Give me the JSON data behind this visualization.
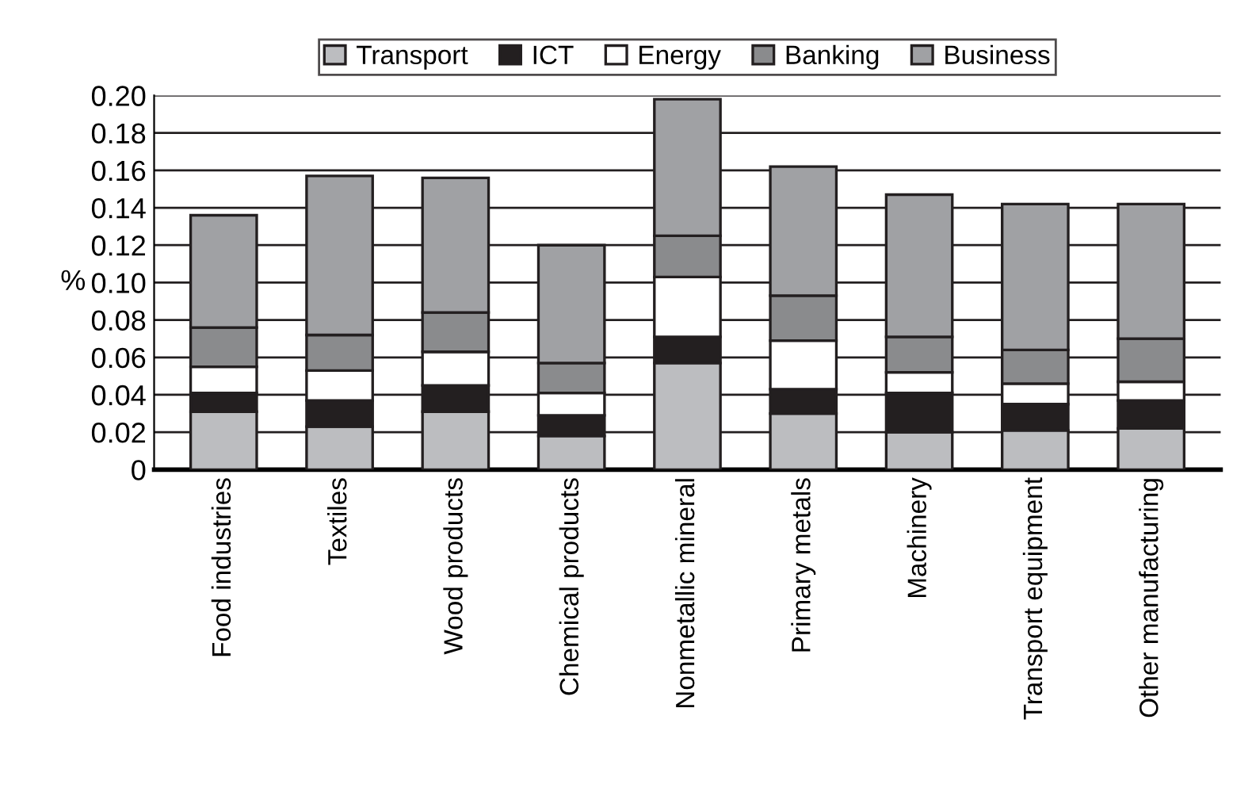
{
  "chart_data": {
    "type": "bar",
    "stacked": true,
    "ylabel": "%",
    "categories": [
      "Food industries",
      "Textiles",
      "Wood products",
      "Chemical products",
      "Nonmetallic mineral",
      "Primary metals",
      "Machinery",
      "Transport equipment",
      "Other manufacturing"
    ],
    "series": [
      {
        "name": "Transport",
        "color": "#bcbdc0",
        "values": [
          0.031,
          0.023,
          0.031,
          0.018,
          0.057,
          0.03,
          0.02,
          0.021,
          0.022
        ]
      },
      {
        "name": "ICT",
        "color": "#231f20",
        "values": [
          0.01,
          0.014,
          0.014,
          0.011,
          0.014,
          0.013,
          0.021,
          0.014,
          0.015
        ]
      },
      {
        "name": "Energy",
        "color": "#ffffff",
        "values": [
          0.014,
          0.016,
          0.018,
          0.012,
          0.032,
          0.026,
          0.011,
          0.011,
          0.01
        ]
      },
      {
        "name": "Banking",
        "color": "#8a8b8d",
        "values": [
          0.021,
          0.019,
          0.021,
          0.016,
          0.022,
          0.024,
          0.019,
          0.018,
          0.023
        ]
      },
      {
        "name": "Business",
        "color": "#a0a1a4",
        "values": [
          0.06,
          0.085,
          0.072,
          0.063,
          0.073,
          0.069,
          0.076,
          0.078,
          0.072
        ]
      }
    ],
    "ylim": [
      0,
      0.2
    ],
    "yticks": [
      {
        "value": 0,
        "label": "0"
      },
      {
        "value": 0.02,
        "label": "0.02"
      },
      {
        "value": 0.04,
        "label": "0.04"
      },
      {
        "value": 0.06,
        "label": "0.06"
      },
      {
        "value": 0.08,
        "label": "0.08"
      },
      {
        "value": 0.1,
        "label": "0.10"
      },
      {
        "value": 0.12,
        "label": "0.12"
      },
      {
        "value": 0.14,
        "label": "0.14"
      },
      {
        "value": 0.16,
        "label": "0.16"
      },
      {
        "value": 0.18,
        "label": "0.18"
      },
      {
        "value": 0.2,
        "label": "0.20"
      }
    ],
    "grid": "y",
    "legend": "top"
  }
}
